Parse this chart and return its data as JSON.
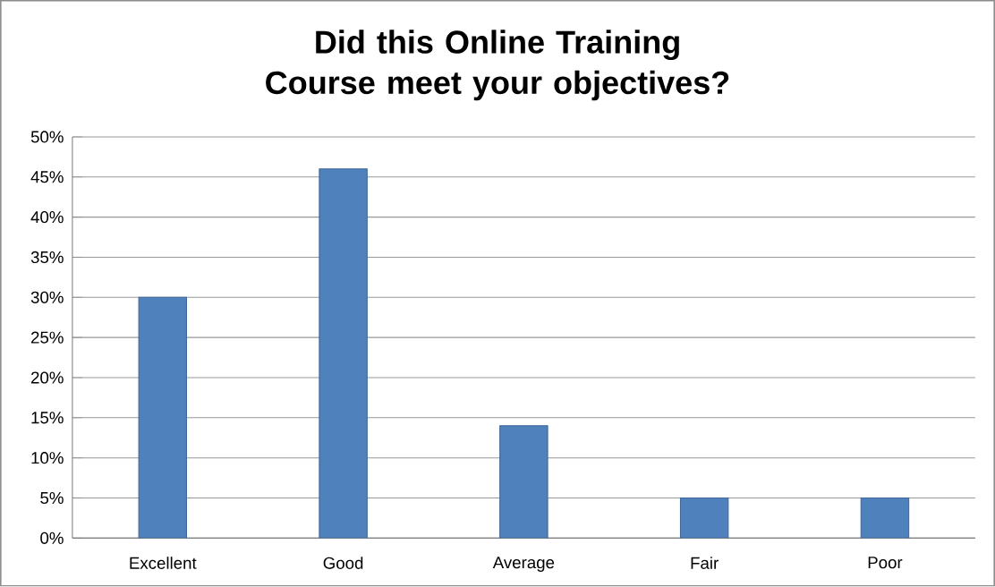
{
  "chart_data": {
    "type": "bar",
    "title": "Did this Online Training Course meet your objectives?",
    "categories": [
      "Excellent",
      "Good",
      "Average",
      "Fair",
      "Poor"
    ],
    "values": [
      30,
      46,
      14,
      5,
      5
    ],
    "color": "#4f81bd",
    "ylim": [
      0,
      50
    ],
    "yticks": [
      {
        "value": 0,
        "label": "0%"
      },
      {
        "value": 5,
        "label": "5%"
      },
      {
        "value": 10,
        "label": "10%"
      },
      {
        "value": 15,
        "label": "15%"
      },
      {
        "value": 20,
        "label": "20%"
      },
      {
        "value": 25,
        "label": "25%"
      },
      {
        "value": 30,
        "label": "30%"
      },
      {
        "value": 35,
        "label": "35%"
      },
      {
        "value": 40,
        "label": "40%"
      },
      {
        "value": 45,
        "label": "45%"
      },
      {
        "value": 50,
        "label": "50%"
      }
    ],
    "grid": "y"
  }
}
